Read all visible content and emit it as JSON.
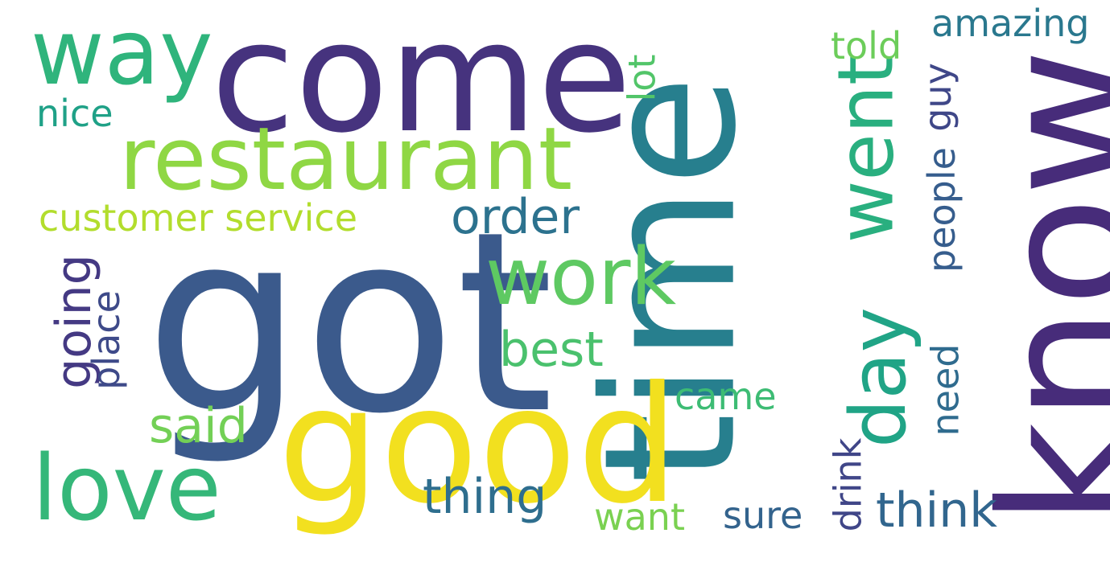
{
  "words": {
    "got": {
      "text": "got",
      "color": "#3b5a8c"
    },
    "come": {
      "text": "come",
      "color": "#46337e"
    },
    "time": {
      "text": "time",
      "color": "#277f8e"
    },
    "know": {
      "text": "know",
      "color": "#472c7a"
    },
    "good": {
      "text": "good",
      "color": "#f2e01f"
    },
    "restaurant": {
      "text": "restaurant",
      "color": "#8fd744"
    },
    "way": {
      "text": "way",
      "color": "#2fb47c"
    },
    "work": {
      "text": "work",
      "color": "#5ec962"
    },
    "love": {
      "text": "love",
      "color": "#35b779"
    },
    "went": {
      "text": "went",
      "color": "#29af7f"
    },
    "day": {
      "text": "day",
      "color": "#20a486"
    },
    "order": {
      "text": "order",
      "color": "#2c728e"
    },
    "best": {
      "text": "best",
      "color": "#4ac16d"
    },
    "said": {
      "text": "said",
      "color": "#73d056"
    },
    "thing": {
      "text": "thing",
      "color": "#2e6e8e"
    },
    "think": {
      "text": "think",
      "color": "#31668e"
    },
    "customer": {
      "text": "customer service",
      "color": "#b2dd2d"
    },
    "going": {
      "text": "going",
      "color": "#443983"
    },
    "place": {
      "text": "place",
      "color": "#3e4a89"
    },
    "came": {
      "text": "came",
      "color": "#3dbc74"
    },
    "want": {
      "text": "want",
      "color": "#7ad151"
    },
    "sure": {
      "text": "sure",
      "color": "#33638d"
    },
    "nice": {
      "text": "nice",
      "color": "#1fa187"
    },
    "told": {
      "text": "told",
      "color": "#6ccd5a"
    },
    "amazing": {
      "text": "amazing",
      "color": "#2a788e"
    },
    "lot": {
      "text": "lot",
      "color": "#52c569"
    },
    "guy": {
      "text": "guy",
      "color": "#3f4788"
    },
    "people": {
      "text": "people",
      "color": "#365d8d"
    },
    "need": {
      "text": "need",
      "color": "#2f6b8e"
    },
    "drink": {
      "text": "drink",
      "color": "#404688"
    }
  }
}
